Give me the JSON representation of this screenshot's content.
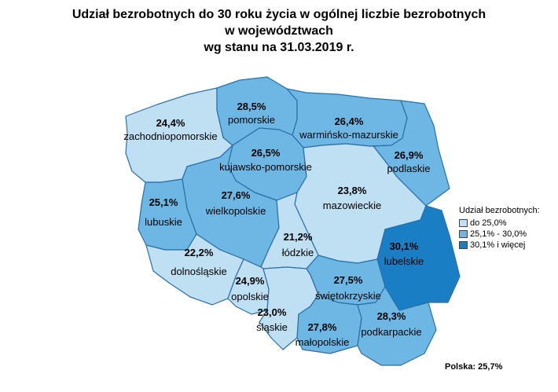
{
  "title": {
    "line1": "Udział bezrobotnych do 30 roku życia w ogólnej liczbie bezrobotnych",
    "line2": "w województwach",
    "line3": "wg stanu na 31.03.2019 r."
  },
  "colors": {
    "low": "#bfdff2",
    "mid": "#6cb7e3",
    "high": "#1a7ec4",
    "border": "#2a6fa8"
  },
  "regions": [
    {
      "id": "zachodniopomorskie",
      "name": "zachodniopomorskie",
      "value": "24,4%",
      "cls": "low"
    },
    {
      "id": "pomorskie",
      "name": "pomorskie",
      "value": "28,5%",
      "cls": "mid"
    },
    {
      "id": "warminsko-mazurskie",
      "name": "warmińsko-mazurskie",
      "value": "26,4%",
      "cls": "mid"
    },
    {
      "id": "podlaskie",
      "name": "podlaskie",
      "value": "26,9%",
      "cls": "mid"
    },
    {
      "id": "kujawsko-pomorskie",
      "name": "kujawsko-pomorskie",
      "value": "26,5%",
      "cls": "mid"
    },
    {
      "id": "lubuskie",
      "name": "lubuskie",
      "value": "25,1%",
      "cls": "mid"
    },
    {
      "id": "wielkopolskie",
      "name": "wielkopolskie",
      "value": "27,6%",
      "cls": "mid"
    },
    {
      "id": "mazowieckie",
      "name": "mazowieckie",
      "value": "23,8%",
      "cls": "low"
    },
    {
      "id": "lodzkie",
      "name": "łódzkie",
      "value": "21,2%",
      "cls": "low"
    },
    {
      "id": "lubelskie",
      "name": "lubelskie",
      "value": "30,1%",
      "cls": "high"
    },
    {
      "id": "dolnoslaskie",
      "name": "dolnośląskie",
      "value": "22,2%",
      "cls": "low"
    },
    {
      "id": "opolskie",
      "name": "opolskie",
      "value": "24,9%",
      "cls": "low"
    },
    {
      "id": "swietokrzyskie",
      "name": "świętokrzyskie",
      "value": "27,5%",
      "cls": "mid"
    },
    {
      "id": "slaskie",
      "name": "śląskie",
      "value": "23,0%",
      "cls": "low"
    },
    {
      "id": "malopolskie",
      "name": "małopolskie",
      "value": "27,8%",
      "cls": "mid"
    },
    {
      "id": "podkarpackie",
      "name": "podkarpackie",
      "value": "28,3%",
      "cls": "mid"
    }
  ],
  "legend": {
    "title": "Udział bezrobotnych:",
    "items": [
      {
        "label": "do 25,0%",
        "cls": "low"
      },
      {
        "label": "25,1% - 30,0%",
        "cls": "mid"
      },
      {
        "label": "30,1% i więcej",
        "cls": "high"
      }
    ]
  },
  "total": "Polska: 25,7%"
}
